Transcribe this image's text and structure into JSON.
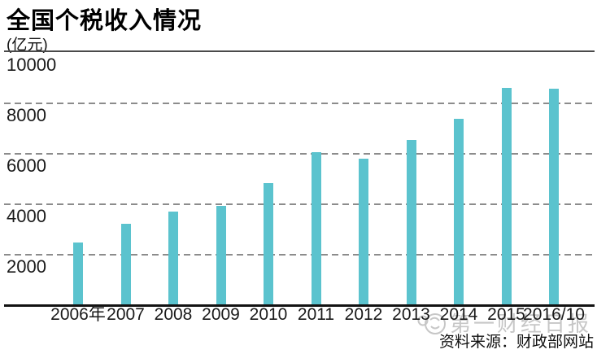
{
  "page": {
    "title": "全国个税收入情况",
    "unit_label": "(亿元)",
    "source_label": "资料来源：财政部网站",
    "watermark_text": "第一财经日报"
  },
  "colors": {
    "bar": "#5bc3ce",
    "gridline": "#8c8c8c",
    "axis": "#121212",
    "top_line": "#4a4a4a",
    "watermark": "#c7c7c7",
    "text": "#1a1a1a"
  },
  "chart_data": {
    "type": "bar",
    "title": "全国个税收入情况",
    "ylabel": "(亿元)",
    "xlabel": "",
    "categories": [
      "2006年",
      "2007",
      "2008",
      "2009",
      "2010",
      "2011",
      "2012",
      "2013",
      "2014",
      "2015",
      "2016/10"
    ],
    "values": [
      2450,
      3190,
      3680,
      3900,
      4810,
      6030,
      5780,
      6520,
      7360,
      8580,
      8550
    ],
    "ylim": [
      0,
      10000
    ],
    "yticks": [
      2000,
      4000,
      6000,
      8000,
      10000
    ],
    "grid": "horizontal-dashed",
    "legend": "none",
    "source": "资料来源：财政部网站"
  }
}
